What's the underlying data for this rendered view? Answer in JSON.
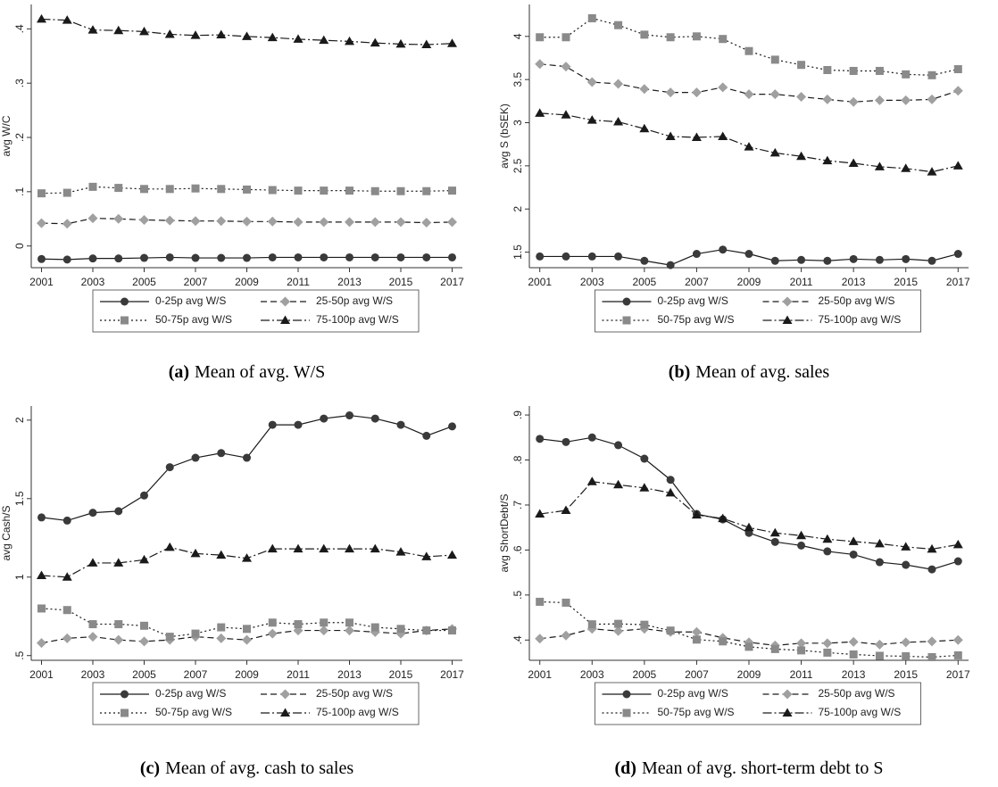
{
  "chart_data": [
    {
      "type": "line",
      "ylabel": "avg W/C",
      "caption_label": "(a)",
      "caption": "Mean of avg. W/S",
      "x": [
        2001,
        2002,
        2003,
        2004,
        2005,
        2006,
        2007,
        2008,
        2009,
        2010,
        2011,
        2012,
        2013,
        2014,
        2015,
        2016,
        2017
      ],
      "xlim": [
        2000.6,
        2017.4
      ],
      "xticks": [
        2001,
        2003,
        2005,
        2007,
        2009,
        2011,
        2013,
        2015,
        2017
      ],
      "ylim": [
        -0.04,
        0.445
      ],
      "yticks": [
        0,
        {
          "value": 0.1,
          "label": ".1"
        },
        {
          "value": 0.2,
          "label": ".2"
        },
        {
          "value": 0.3,
          "label": ".3"
        },
        {
          "value": 0.4,
          "label": ".4"
        }
      ],
      "series": [
        {
          "name": "0-25p avg W/S",
          "color": "#1a1a1a",
          "marker": "circle",
          "marker_color": "#3a3a3a",
          "dash": "solid",
          "values": [
            -0.024,
            -0.025,
            -0.023,
            -0.023,
            -0.022,
            -0.021,
            -0.022,
            -0.022,
            -0.022,
            -0.021,
            -0.021,
            -0.021,
            -0.021,
            -0.021,
            -0.021,
            -0.021,
            -0.021
          ]
        },
        {
          "name": "25-50p avg W/S",
          "color": "#1a1a1a",
          "marker": "diamond",
          "marker_color": "#a0a0a0",
          "dash": "dashed",
          "values": [
            0.042,
            0.041,
            0.051,
            0.05,
            0.048,
            0.047,
            0.046,
            0.046,
            0.045,
            0.045,
            0.044,
            0.044,
            0.044,
            0.044,
            0.044,
            0.043,
            0.044
          ]
        },
        {
          "name": "50-75p avg W/S",
          "color": "#1a1a1a",
          "marker": "square",
          "marker_color": "#8a8a8a",
          "dash": "dotted",
          "values": [
            0.097,
            0.098,
            0.109,
            0.107,
            0.105,
            0.105,
            0.106,
            0.105,
            0.104,
            0.103,
            0.102,
            0.102,
            0.102,
            0.101,
            0.101,
            0.101,
            0.102
          ]
        },
        {
          "name": "75-100p avg W/S",
          "color": "#1a1a1a",
          "marker": "triangle",
          "marker_color": "#1a1a1a",
          "dash": "dashdot",
          "values": [
            0.418,
            0.416,
            0.398,
            0.397,
            0.395,
            0.39,
            0.388,
            0.389,
            0.386,
            0.384,
            0.381,
            0.379,
            0.377,
            0.374,
            0.372,
            0.371,
            0.373
          ]
        }
      ]
    },
    {
      "type": "line",
      "ylabel": "avg S (bSEK)",
      "caption_label": "(b)",
      "caption": "Mean of avg. sales",
      "x": [
        2001,
        2002,
        2003,
        2004,
        2005,
        2006,
        2007,
        2008,
        2009,
        2010,
        2011,
        2012,
        2013,
        2014,
        2015,
        2016,
        2017
      ],
      "xlim": [
        2000.6,
        2017.4
      ],
      "xticks": [
        2001,
        2003,
        2005,
        2007,
        2009,
        2011,
        2013,
        2015,
        2017
      ],
      "ylim": [
        1.32,
        4.37
      ],
      "yticks": [
        1.5,
        2,
        2.5,
        3,
        3.5,
        4
      ],
      "series": [
        {
          "name": "0-25p avg W/S",
          "color": "#1a1a1a",
          "marker": "circle",
          "marker_color": "#3a3a3a",
          "dash": "solid",
          "values": [
            1.45,
            1.45,
            1.45,
            1.45,
            1.4,
            1.35,
            1.48,
            1.53,
            1.48,
            1.4,
            1.41,
            1.4,
            1.42,
            1.41,
            1.42,
            1.4,
            1.48
          ]
        },
        {
          "name": "25-50p avg W/S",
          "color": "#1a1a1a",
          "marker": "diamond",
          "marker_color": "#a0a0a0",
          "dash": "dashed",
          "values": [
            3.68,
            3.65,
            3.47,
            3.45,
            3.39,
            3.35,
            3.35,
            3.41,
            3.33,
            3.33,
            3.3,
            3.27,
            3.24,
            3.26,
            3.26,
            3.27,
            3.37
          ]
        },
        {
          "name": "50-75p avg W/S",
          "color": "#1a1a1a",
          "marker": "square",
          "marker_color": "#8a8a8a",
          "dash": "dotted",
          "values": [
            3.99,
            3.99,
            4.21,
            4.13,
            4.02,
            3.99,
            4.0,
            3.97,
            3.83,
            3.73,
            3.67,
            3.61,
            3.6,
            3.6,
            3.56,
            3.55,
            3.62
          ]
        },
        {
          "name": "75-100p avg W/S",
          "color": "#1a1a1a",
          "marker": "triangle",
          "marker_color": "#1a1a1a",
          "dash": "dashdot",
          "values": [
            3.11,
            3.09,
            3.03,
            3.01,
            2.93,
            2.84,
            2.83,
            2.84,
            2.72,
            2.65,
            2.61,
            2.56,
            2.53,
            2.49,
            2.47,
            2.43,
            2.5
          ]
        }
      ]
    },
    {
      "type": "line",
      "ylabel": "avg Cash/S",
      "caption_label": "(c)",
      "caption": "Mean of avg. cash to sales",
      "x": [
        2001,
        2002,
        2003,
        2004,
        2005,
        2006,
        2007,
        2008,
        2009,
        2010,
        2011,
        2012,
        2013,
        2014,
        2015,
        2016,
        2017
      ],
      "xlim": [
        2000.6,
        2017.4
      ],
      "xticks": [
        2001,
        2003,
        2005,
        2007,
        2009,
        2011,
        2013,
        2015,
        2017
      ],
      "ylim": [
        0.47,
        2.09
      ],
      "yticks": [
        {
          "value": 0.5,
          "label": ".5"
        },
        1,
        1.5,
        2
      ],
      "series": [
        {
          "name": "0-25p avg W/S",
          "color": "#1a1a1a",
          "marker": "circle",
          "marker_color": "#3a3a3a",
          "dash": "solid",
          "values": [
            1.38,
            1.36,
            1.41,
            1.42,
            1.52,
            1.7,
            1.76,
            1.79,
            1.76,
            1.97,
            1.97,
            2.01,
            2.03,
            2.01,
            1.97,
            1.9,
            1.96
          ]
        },
        {
          "name": "25-50p avg W/S",
          "color": "#1a1a1a",
          "marker": "diamond",
          "marker_color": "#a0a0a0",
          "dash": "dashed",
          "values": [
            0.58,
            0.61,
            0.62,
            0.6,
            0.59,
            0.6,
            0.62,
            0.61,
            0.6,
            0.64,
            0.66,
            0.66,
            0.66,
            0.65,
            0.64,
            0.66,
            0.67
          ]
        },
        {
          "name": "50-75p avg W/S",
          "color": "#1a1a1a",
          "marker": "square",
          "marker_color": "#8a8a8a",
          "dash": "dotted",
          "values": [
            0.8,
            0.79,
            0.7,
            0.7,
            0.69,
            0.62,
            0.64,
            0.68,
            0.67,
            0.71,
            0.7,
            0.71,
            0.71,
            0.68,
            0.67,
            0.66,
            0.66
          ]
        },
        {
          "name": "75-100p avg W/S",
          "color": "#1a1a1a",
          "marker": "triangle",
          "marker_color": "#1a1a1a",
          "dash": "dashdot",
          "values": [
            1.01,
            1.0,
            1.09,
            1.09,
            1.11,
            1.19,
            1.15,
            1.14,
            1.12,
            1.18,
            1.18,
            1.18,
            1.18,
            1.18,
            1.16,
            1.13,
            1.14
          ]
        }
      ]
    },
    {
      "type": "line",
      "ylabel": "avg ShortDebt/S",
      "caption_label": "(d)",
      "caption": "Mean of avg. short-term debt to S",
      "x": [
        2001,
        2002,
        2003,
        2004,
        2005,
        2006,
        2007,
        2008,
        2009,
        2010,
        2011,
        2012,
        2013,
        2014,
        2015,
        2016,
        2017
      ],
      "xlim": [
        2000.6,
        2017.4
      ],
      "xticks": [
        2001,
        2003,
        2005,
        2007,
        2009,
        2011,
        2013,
        2015,
        2017
      ],
      "ylim": [
        0.355,
        0.92
      ],
      "yticks": [
        {
          "value": 0.4,
          "label": ".4"
        },
        {
          "value": 0.5,
          "label": ".5"
        },
        {
          "value": 0.6,
          "label": ".6"
        },
        {
          "value": 0.7,
          "label": ".7"
        },
        {
          "value": 0.8,
          "label": ".8"
        },
        {
          "value": 0.9,
          "label": ".9"
        }
      ],
      "series": [
        {
          "name": "0-25p avg W/S",
          "color": "#1a1a1a",
          "marker": "circle",
          "marker_color": "#3a3a3a",
          "dash": "solid",
          "values": [
            0.847,
            0.84,
            0.85,
            0.833,
            0.803,
            0.756,
            0.68,
            0.668,
            0.638,
            0.618,
            0.61,
            0.597,
            0.59,
            0.573,
            0.567,
            0.557,
            0.575
          ]
        },
        {
          "name": "25-50p avg W/S",
          "color": "#1a1a1a",
          "marker": "diamond",
          "marker_color": "#a0a0a0",
          "dash": "dashed",
          "values": [
            0.403,
            0.41,
            0.425,
            0.42,
            0.425,
            0.418,
            0.418,
            0.405,
            0.395,
            0.388,
            0.393,
            0.393,
            0.396,
            0.39,
            0.395,
            0.397,
            0.4
          ]
        },
        {
          "name": "50-75p avg W/S",
          "color": "#1a1a1a",
          "marker": "square",
          "marker_color": "#8a8a8a",
          "dash": "dotted",
          "values": [
            0.485,
            0.483,
            0.435,
            0.436,
            0.434,
            0.421,
            0.401,
            0.397,
            0.385,
            0.38,
            0.377,
            0.372,
            0.368,
            0.365,
            0.364,
            0.362,
            0.366
          ]
        },
        {
          "name": "75-100p avg W/S",
          "color": "#1a1a1a",
          "marker": "triangle",
          "marker_color": "#1a1a1a",
          "dash": "dashdot",
          "values": [
            0.68,
            0.688,
            0.752,
            0.745,
            0.738,
            0.727,
            0.678,
            0.67,
            0.65,
            0.638,
            0.632,
            0.624,
            0.619,
            0.614,
            0.607,
            0.602,
            0.612
          ]
        }
      ]
    }
  ]
}
